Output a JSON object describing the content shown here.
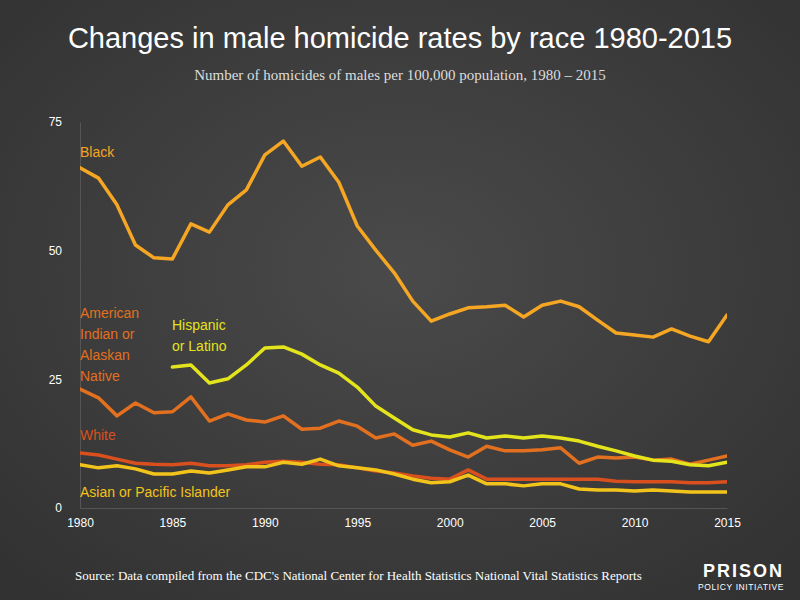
{
  "chart_data": {
    "type": "line",
    "title": "Changes in male homicide rates by race 1980-2015",
    "subtitle": "Number of homicides of males per 100,000 population, 1980 – 2015",
    "source": "Source: Data compiled from the CDC's National Center for Health Statistics National Vital Statistics Reports",
    "logo": [
      "PRISON",
      "POLICY INITIATIVE"
    ],
    "x": [
      1980,
      1981,
      1982,
      1983,
      1984,
      1985,
      1986,
      1987,
      1988,
      1989,
      1990,
      1991,
      1992,
      1993,
      1994,
      1995,
      1996,
      1997,
      1998,
      1999,
      2000,
      2001,
      2002,
      2003,
      2004,
      2005,
      2006,
      2007,
      2008,
      2009,
      2010,
      2011,
      2012,
      2013,
      2014,
      2015
    ],
    "xlim": [
      1980,
      2015
    ],
    "xticks": [
      1980,
      1985,
      1990,
      1995,
      2000,
      2005,
      2010,
      2015
    ],
    "ylim": [
      0,
      75
    ],
    "yticks": [
      0,
      25,
      50,
      75
    ],
    "grid": false,
    "series": [
      {
        "name": "Black",
        "color": "#f5a623",
        "values": [
          66.1,
          64.1,
          58.9,
          51.1,
          48.6,
          48.4,
          55.2,
          53.6,
          58.9,
          61.8,
          68.6,
          71.3,
          66.4,
          68.2,
          63.3,
          54.8,
          50.1,
          45.7,
          40.2,
          36.3,
          37.7,
          38.9,
          39.1,
          39.4,
          37.1,
          39.4,
          40.2,
          39.1,
          36.5,
          34.0,
          33.6,
          33.2,
          34.8,
          33.4,
          32.3,
          37.5
        ]
      },
      {
        "name": "American Indian or Alaskan Native",
        "color": "#e2701f",
        "values": [
          23.1,
          21.4,
          17.9,
          20.4,
          18.5,
          18.7,
          21.6,
          16.9,
          18.3,
          17.1,
          16.7,
          17.9,
          15.3,
          15.5,
          16.9,
          15.9,
          13.6,
          14.4,
          12.2,
          13.0,
          11.3,
          9.9,
          12.0,
          11.1,
          11.1,
          11.3,
          11.7,
          8.7,
          9.9,
          9.7,
          9.9,
          9.3,
          9.5,
          8.5,
          9.3,
          10.1
        ]
      },
      {
        "name": "Hispanic or Latino",
        "color": "#e4e41c",
        "values": [
          null,
          null,
          null,
          null,
          null,
          27.4,
          27.8,
          24.3,
          25.1,
          27.8,
          31.1,
          31.3,
          29.9,
          27.8,
          26.2,
          23.5,
          19.8,
          17.5,
          15.2,
          14.2,
          13.8,
          14.6,
          13.6,
          14.0,
          13.6,
          14.0,
          13.6,
          13.0,
          12.0,
          11.1,
          10.1,
          9.3,
          9.1,
          8.4,
          8.2,
          8.9
        ]
      },
      {
        "name": "White",
        "color": "#d9501e",
        "values": [
          10.7,
          10.3,
          9.5,
          8.7,
          8.5,
          8.4,
          8.7,
          8.2,
          8.2,
          8.4,
          8.9,
          9.1,
          8.9,
          8.5,
          8.4,
          7.8,
          7.2,
          6.8,
          6.2,
          5.8,
          5.6,
          7.4,
          5.6,
          5.6,
          5.6,
          5.6,
          5.6,
          5.6,
          5.6,
          5.2,
          5.1,
          5.1,
          5.1,
          4.9,
          4.9,
          5.1
        ]
      },
      {
        "name": "Asian or Pacific Islander",
        "color": "#f2c41b",
        "values": [
          8.4,
          7.8,
          8.2,
          7.6,
          6.6,
          6.6,
          7.2,
          6.8,
          7.4,
          8.0,
          8.0,
          8.9,
          8.5,
          9.5,
          8.2,
          7.8,
          7.4,
          6.6,
          5.6,
          4.9,
          5.1,
          6.4,
          4.7,
          4.7,
          4.3,
          4.7,
          4.7,
          3.7,
          3.5,
          3.5,
          3.3,
          3.5,
          3.3,
          3.1,
          3.1,
          3.1
        ]
      }
    ]
  }
}
